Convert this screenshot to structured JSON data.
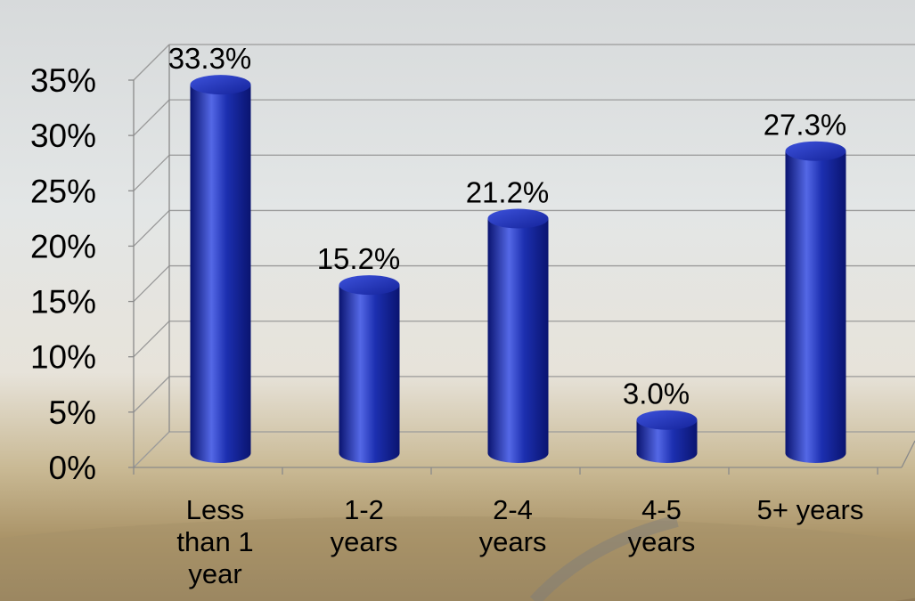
{
  "chart_data": {
    "type": "bar",
    "categories": [
      "Less than 1 year",
      "1-2 years",
      "2-4 years",
      "4-5 years",
      "5+ years"
    ],
    "category_lines": [
      [
        "Less",
        "than 1",
        "year"
      ],
      [
        "1-2",
        "years"
      ],
      [
        "2-4",
        "years"
      ],
      [
        "4-5",
        "years"
      ],
      [
        "5+ years"
      ]
    ],
    "values": [
      33.3,
      15.2,
      21.2,
      3.0,
      27.3
    ],
    "value_labels": [
      "33.3%",
      "15.2%",
      "21.2%",
      "3.0%",
      "27.3%"
    ],
    "yticks": [
      "0%",
      "5%",
      "10%",
      "15%",
      "20%",
      "25%",
      "30%",
      "35%"
    ],
    "ylim": [
      0,
      35
    ],
    "grid": true,
    "legend": "none",
    "style": "3d-cylinder",
    "colors": {
      "bar_main": "#1c2fb0",
      "bar_dark": "#0a1470",
      "bar_light": "#5468e6",
      "axis": "#8a8a8a",
      "grid": "#9a9a9a"
    }
  }
}
